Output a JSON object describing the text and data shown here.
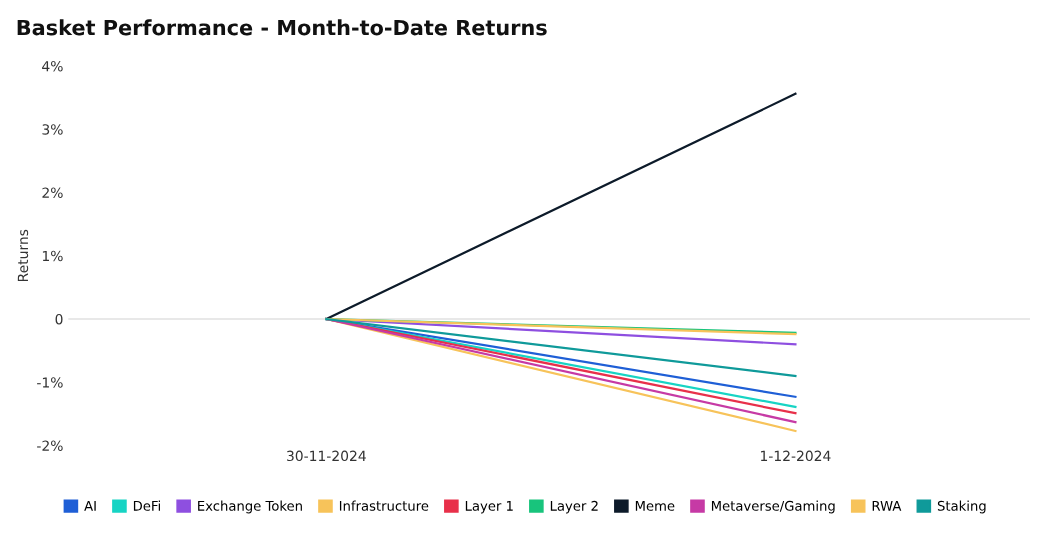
{
  "chart_data": {
    "type": "line",
    "title": "Basket Performance - Month-to-Date Returns",
    "ylabel": "Returns",
    "categories": [
      "30-11-2024",
      "1-12-2024"
    ],
    "series": [
      {
        "name": "AI",
        "color": "#1f5fd6",
        "values": [
          0,
          -1.23
        ]
      },
      {
        "name": "DeFi",
        "color": "#17d4c4",
        "values": [
          0,
          -1.39
        ]
      },
      {
        "name": "Exchange Token",
        "color": "#8e4fe0",
        "values": [
          0,
          -0.4
        ]
      },
      {
        "name": "Infrastructure",
        "color": "#f7c35a",
        "values": [
          0,
          -1.77
        ]
      },
      {
        "name": "Layer 1",
        "color": "#e8304a",
        "values": [
          0,
          -1.49
        ]
      },
      {
        "name": "Layer 2",
        "color": "#18c47c",
        "values": [
          0,
          -0.22
        ]
      },
      {
        "name": "Meme",
        "color": "#0d1b2a",
        "values": [
          0,
          3.56
        ]
      },
      {
        "name": "Metaverse/Gaming",
        "color": "#c63aa5",
        "values": [
          0,
          -1.63
        ]
      },
      {
        "name": "RWA",
        "color": "#f7c35a",
        "values": [
          0,
          -0.24
        ]
      },
      {
        "name": "Staking",
        "color": "#0f9a9a",
        "values": [
          0,
          -0.9
        ]
      }
    ],
    "ylim": [
      -2,
      4
    ],
    "yticks": [
      {
        "value": -2,
        "label": "-2%"
      },
      {
        "value": -1,
        "label": "-1%"
      },
      0,
      {
        "value": 1,
        "label": "1%"
      },
      {
        "value": 2,
        "label": "2%"
      },
      {
        "value": 3,
        "label": "3%"
      },
      {
        "value": 4,
        "label": "4%"
      }
    ],
    "ref_lines": [
      {
        "axis": "y",
        "value": 0,
        "color": "#e0e0e0"
      }
    ],
    "grid": false,
    "legend": "bottom",
    "marker": "none",
    "line_style": "solid"
  }
}
